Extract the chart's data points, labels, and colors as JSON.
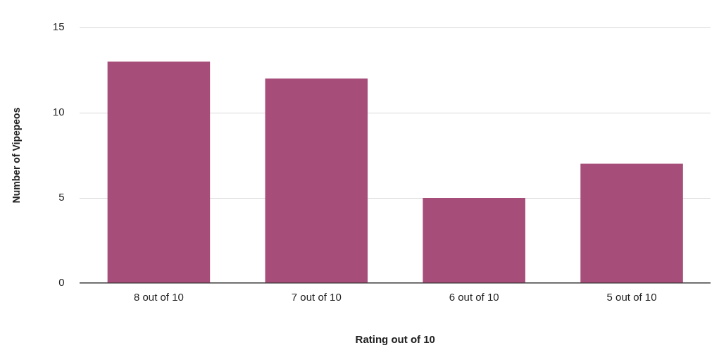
{
  "chart_data": {
    "type": "bar",
    "xlabel": "Rating out of 10",
    "ylabel": "Number of Vipepeos",
    "categories": [
      "8 out of 10",
      "7 out of 10",
      "6 out of 10",
      "5 out of 10"
    ],
    "values": [
      13,
      12,
      5,
      7
    ],
    "color": "#a64d79",
    "ylim": [
      0,
      15
    ],
    "yticks": [
      0,
      5,
      10,
      15
    ],
    "grid": "y",
    "legend": false
  }
}
